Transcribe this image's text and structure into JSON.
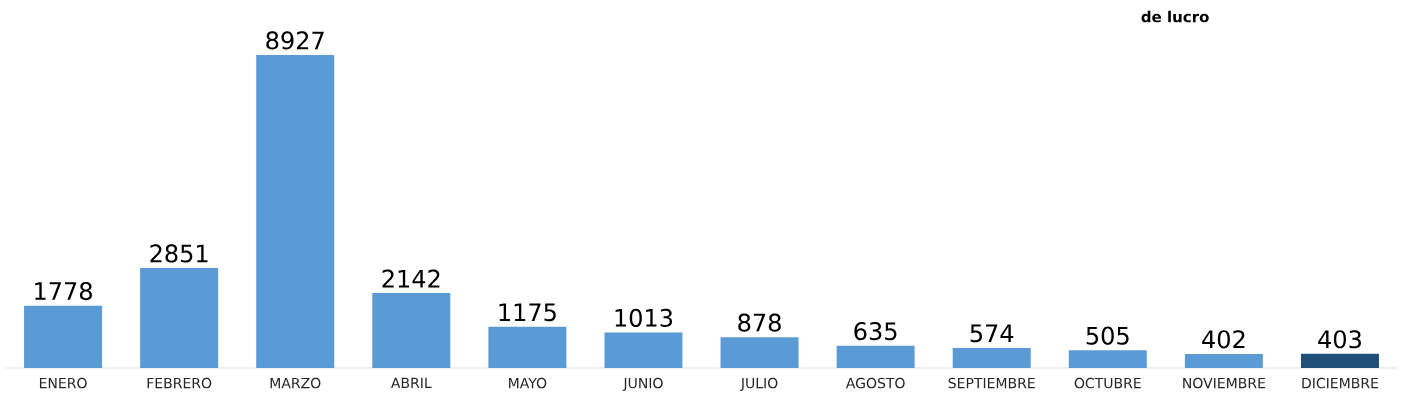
{
  "chart_data": {
    "type": "bar",
    "categories": [
      "ENERO",
      "FEBRERO",
      "MARZO",
      "ABRIL",
      "MAYO",
      "JUNIO",
      "JULIO",
      "AGOSTO",
      "SEPTIEMBRE",
      "OCTUBRE",
      "NOVIEMBRE",
      "DICIEMBRE"
    ],
    "values": [
      1778,
      2851,
      8927,
      2142,
      1175,
      1013,
      878,
      635,
      574,
      505,
      402,
      403
    ],
    "colors": [
      "#5b9bd5",
      "#5b9bd5",
      "#5b9bd5",
      "#5b9bd5",
      "#5b9bd5",
      "#5b9bd5",
      "#5b9bd5",
      "#5b9bd5",
      "#5b9bd5",
      "#5b9bd5",
      "#5b9bd5",
      "#1f4e79"
    ],
    "data_labels": true,
    "annotations": [
      "de lucro"
    ]
  }
}
